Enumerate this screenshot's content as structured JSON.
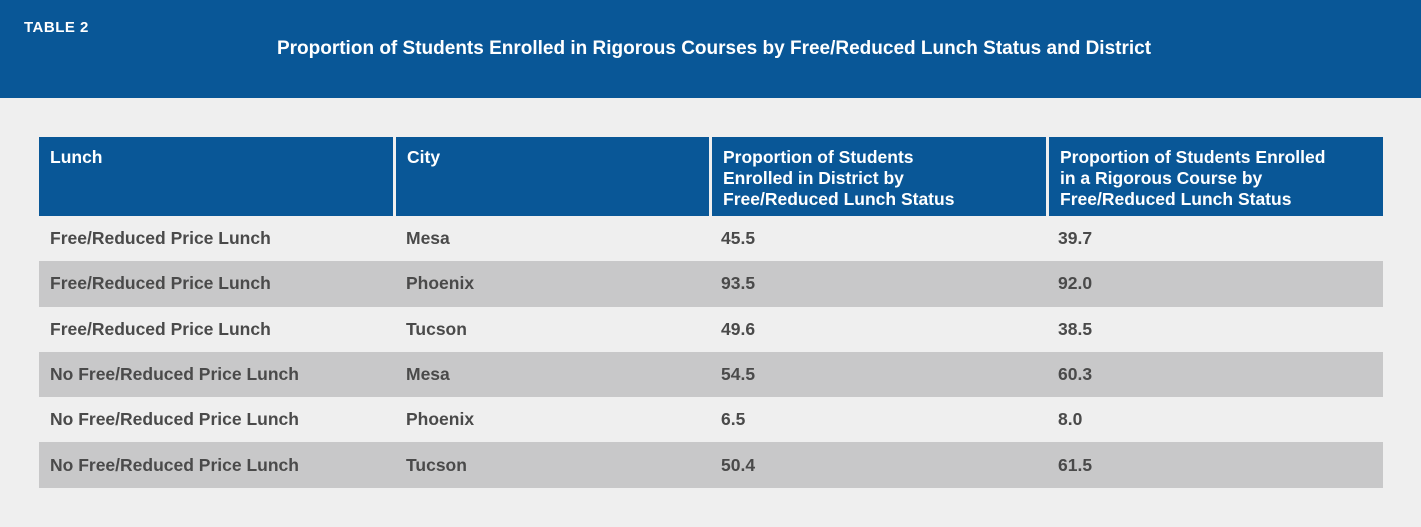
{
  "header": {
    "table_label": "TABLE 2",
    "title": "Proportion of Students Enrolled in Rigorous Courses by Free/Reduced Lunch Status and District"
  },
  "table": {
    "columns": [
      "Lunch",
      "City",
      "Proportion of Students\nEnrolled in District by\nFree/Reduced Lunch Status",
      "Proportion of Students Enrolled\nin a Rigorous Course by\nFree/Reduced Lunch Status"
    ],
    "rows": [
      [
        "Free/Reduced Price Lunch",
        "Mesa",
        "45.5",
        "39.7"
      ],
      [
        "Free/Reduced Price Lunch",
        "Phoenix",
        "93.5",
        "92.0"
      ],
      [
        "Free/Reduced Price Lunch",
        "Tucson",
        "49.6",
        "38.5"
      ],
      [
        "No Free/Reduced Price Lunch",
        "Mesa",
        "54.5",
        "60.3"
      ],
      [
        "No Free/Reduced Price Lunch",
        "Phoenix",
        "6.5",
        "8.0"
      ],
      [
        "No Free/Reduced Price Lunch",
        "Tucson",
        "50.4",
        "61.5"
      ]
    ]
  },
  "colors": {
    "header_blue": "#095797",
    "page_background": "#efefef",
    "shaded_row": "#c8c8c9",
    "body_text": "#4a4a4a"
  }
}
